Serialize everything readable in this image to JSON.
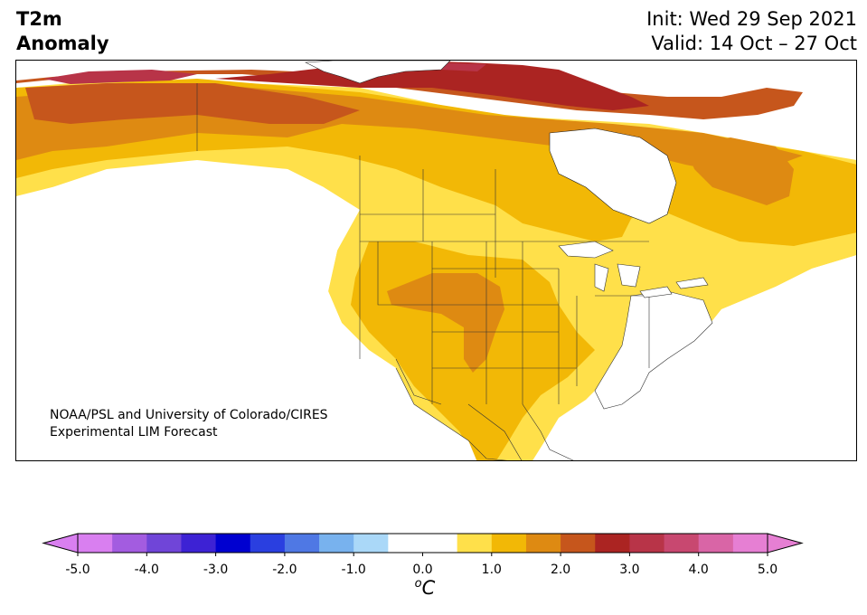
{
  "title": {
    "left_line1": "T2m",
    "left_line2": "Anomaly",
    "init": "Init: Wed 29 Sep 2021",
    "valid": "Valid: 14 Oct – 27 Oct"
  },
  "credit": {
    "line1": "NOAA/PSL and University of Colorado/CIRES",
    "line2": "Experimental LIM Forecast"
  },
  "colorbar": {
    "unit_superscript": "o",
    "unit_base": "C",
    "ticks": [
      "-5.0",
      "-4.0",
      "-3.0",
      "-2.0",
      "-1.0",
      "0.0",
      "1.0",
      "2.0",
      "3.0",
      "4.0",
      "5.0"
    ],
    "min": -5.0,
    "max": 5.0,
    "step": 0.5,
    "colors": [
      "#d97ff0",
      "#a35ce0",
      "#7045d8",
      "#3d22d4",
      "#0000d0",
      "#2a3fe0",
      "#4f78e4",
      "#78b2ee",
      "#aad8f8",
      "#ffffff",
      "#ffffff",
      "#ffe04a",
      "#f2b806",
      "#de8a12",
      "#c6561c",
      "#ab2422",
      "#b83448",
      "#c84870",
      "#d965a6",
      "#e67fd3"
    ],
    "under_color": "#d97ff0",
    "over_color": "#e67fd3"
  },
  "map_colors": {
    "land": "#ffffff",
    "c05": "#ffe04a",
    "c10": "#f2b806",
    "c15": "#de8a12",
    "c20": "#c6561c",
    "c25": "#ab2422",
    "c30": "#b83448"
  }
}
